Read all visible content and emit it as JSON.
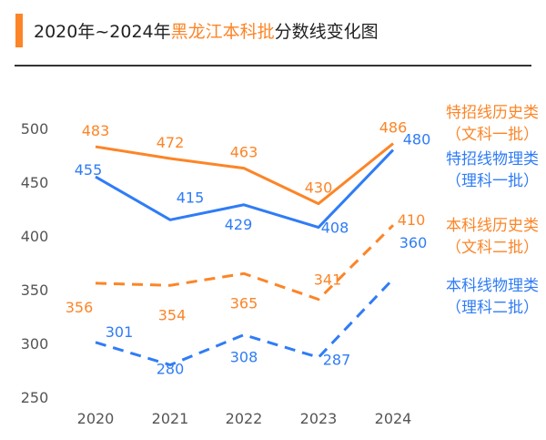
{
  "title": {
    "prefix": "2020年~2024年",
    "highlight": "黑龙江本科批",
    "suffix": "分数线变化图"
  },
  "colors": {
    "orange": "#fc8527",
    "blue": "#2f7cf6",
    "accent_bar": "#fc8527"
  },
  "chart_data": {
    "type": "line",
    "categories": [
      "2020",
      "2021",
      "2022",
      "2023",
      "2024"
    ],
    "ylim": [
      250,
      500
    ],
    "yticks": [
      250,
      300,
      350,
      400,
      450,
      500
    ],
    "grid": false,
    "legend": "right",
    "series": [
      {
        "name": "特招线历史类",
        "subname": "（文科一批）",
        "values": [
          483,
          472,
          463,
          430,
          486
        ],
        "color": "#fc8527",
        "dash": false
      },
      {
        "name": "特招线物理类",
        "subname": "（理科一批）",
        "values": [
          455,
          415,
          429,
          408,
          480
        ],
        "color": "#2f7cf6",
        "dash": false
      },
      {
        "name": "本科线历史类",
        "subname": "（文科二批）",
        "values": [
          356,
          354,
          365,
          341,
          410
        ],
        "color": "#fc8527",
        "dash": true
      },
      {
        "name": "本科线物理类",
        "subname": "（理科二批）",
        "values": [
          301,
          280,
          308,
          287,
          360
        ],
        "color": "#2f7cf6",
        "dash": true
      }
    ]
  }
}
